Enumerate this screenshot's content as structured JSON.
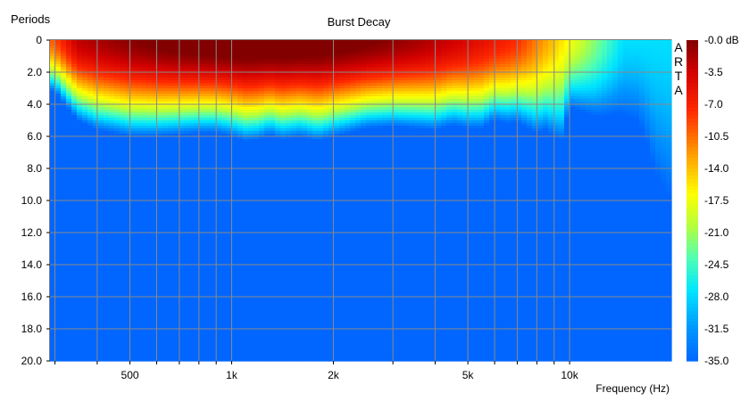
{
  "chart_data": {
    "type": "heatmap",
    "title": "Burst Decay",
    "ylabel": "Periods",
    "xlabel": "Frequency (Hz)",
    "watermark": "ARTA",
    "x_scale": "log",
    "xlim_hz": [
      290,
      20000
    ],
    "ylim_periods": [
      0,
      20
    ],
    "y_inverted": true,
    "grid": true,
    "y_ticks": [
      "0",
      "2.0",
      "4.0",
      "6.0",
      "8.0",
      "10.0",
      "12.0",
      "14.0",
      "16.0",
      "18.0",
      "20.0"
    ],
    "x_ticks": [
      {
        "hz": 500,
        "label": "500"
      },
      {
        "hz": 1000,
        "label": "1k"
      },
      {
        "hz": 2000,
        "label": "2k"
      },
      {
        "hz": 5000,
        "label": "5k"
      },
      {
        "hz": 10000,
        "label": "10k"
      }
    ],
    "colorbar_labels": [
      "-0.0 dB",
      "-3.5",
      "-7.0",
      "-10.5",
      "-14.0",
      "-17.5",
      "-21.0",
      "-24.5",
      "-28.0",
      "-31.5",
      "-35.0"
    ],
    "colorbar_range_db": [
      0,
      -35
    ],
    "decay_periods_to_floor": {
      "hz": [
        300,
        320,
        350,
        400,
        450,
        500,
        600,
        700,
        800,
        900,
        1000,
        1100,
        1200,
        1300,
        1400,
        1600,
        1800,
        2000,
        2200,
        2500,
        3000,
        3500,
        4000,
        4500,
        5000,
        5500,
        6000,
        6500,
        7000,
        8000,
        8500,
        9000,
        9500,
        10000,
        11000,
        12000,
        13000,
        14000,
        15000,
        16000,
        17000,
        18000,
        19000,
        20000
      ],
      "periods": [
        3.2,
        4.0,
        5.0,
        5.6,
        5.8,
        6.0,
        6.0,
        5.9,
        5.8,
        5.8,
        6.0,
        6.3,
        6.2,
        5.9,
        6.2,
        6.0,
        6.3,
        6.0,
        5.8,
        5.5,
        5.4,
        5.5,
        5.6,
        5.3,
        5.5,
        5.5,
        5.0,
        5.2,
        5.1,
        5.8,
        5.6,
        6.0,
        6.2,
        4.2,
        4.5,
        4.8,
        4.7,
        4.6,
        4.8,
        5.0,
        6.5,
        8.4,
        9.2,
        10.0
      ]
    },
    "floor_db": -35
  }
}
